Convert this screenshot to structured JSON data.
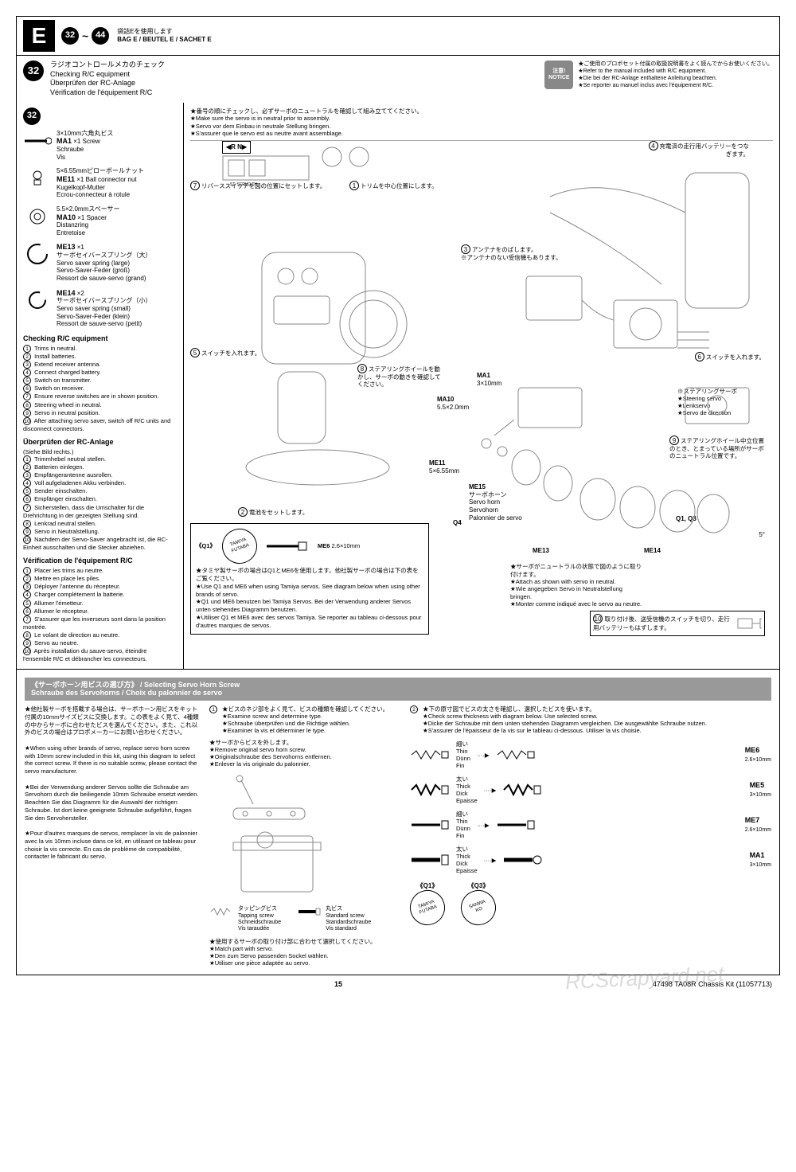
{
  "header": {
    "section_letter": "E",
    "step_from": "32",
    "step_to": "44",
    "bag_jp": "袋詰Eを使用します",
    "bag_multi": "BAG E / BEUTEL E / SACHET E"
  },
  "step32": {
    "num": "32",
    "title_jp": "ラジオコントロールメカのチェック",
    "title_en": "Checking R/C equipment",
    "title_de": "Überprüfen der RC-Anlage",
    "title_fr": "Vérification de l'équipement R/C",
    "notice_label": "注意!\nNOTICE",
    "notice_jp": "★ご使用のプロポセット付属の取扱説明書をよく読んでからお使いください。",
    "notice_en": "★Refer to the manual included with R/C equipment.",
    "notice_de": "★Die bei der RC-Anlage enthaltene Anleitung beachten.",
    "notice_fr": "★Se reporter au manuel inclus avec l'équipement R/C.",
    "neutral_jp": "★番号の順にチェックし、必ずサーボのニュートラルを確認して組み立ててください。",
    "neutral_en": "★Make sure the servo is in neutral prior to assembly.",
    "neutral_de": "★Servo vor dem Einbau in neutrale Stellung bringen.",
    "neutral_fr": "★S'assurer que le servo est au neutre avant assemblage.",
    "rn_label": "◀R  N▶"
  },
  "parts": {
    "ma1": {
      "code": "MA1",
      "qty": "×1",
      "spec": "3×10mm六角丸ビス",
      "en": "Screw",
      "de": "Schraube",
      "fr": "Vis"
    },
    "me11": {
      "code": "ME11",
      "qty": "×1",
      "spec": "5×6.55mmピローボールナット",
      "en": "Ball connector nut",
      "de": "Kugelkopf-Mutter",
      "fr": "Ecrou-connecteur à rotule"
    },
    "ma10": {
      "code": "MA10",
      "qty": "×1",
      "spec": "5.5×2.0mmスペーサー",
      "en": "Spacer",
      "de": "Distanzring",
      "fr": "Entretoise"
    },
    "me13": {
      "code": "ME13",
      "qty": "×1",
      "spec": "サーボセイバースプリング（大）",
      "en": "Servo saver spring (large)",
      "de": "Servo-Saver-Feder (groß)",
      "fr": "Ressort de sauve-servo (grand)"
    },
    "me14": {
      "code": "ME14",
      "qty": "×2",
      "spec": "サーボセイバースプリング（小）",
      "en": "Servo saver spring (small)",
      "de": "Servo-Saver-Feder (klein)",
      "fr": "Ressort de sauve-servo (petit)"
    }
  },
  "checking": {
    "en_title": "Checking R/C equipment",
    "en": [
      "Trims in neutral.",
      "Install batteries.",
      "Extend receiver antenna.",
      "Connect charged battery.",
      "Switch on transmitter.",
      "Switch on receiver.",
      "Ensure reverse switches are in shown position.",
      "Steering wheel in neutral.",
      "Servo in neutral position.",
      "After attaching servo saver, switch off R/C units and disconnect connectors."
    ],
    "de_title": "Überprüfen der RC-Anlage",
    "de_sub": "(Siehe Bild rechts.)",
    "de": [
      "Trimmhebel neutral stellen.",
      "Batterien einlegen.",
      "Empfängerantenne ausrollen.",
      "Voll aufgeladenen Akku verbinden.",
      "Sender einschalten.",
      "Empfänger einschalten.",
      "Sicherstellen, dass die Umschalter für die Drehrichtung in der gezeigten Stellung sind.",
      "Lenkrad neutral stellen.",
      "Servo in Neutralstellung.",
      "Nachdem der Servo-Saver angebracht ist, die RC-Einheit ausschalten und die Stecker abziehen."
    ],
    "fr_title": "Vérification de l'équipement R/C",
    "fr": [
      "Placer les trims au neutre.",
      "Mettre en place les piles.",
      "Déployer l'antenne du récepteur.",
      "Charger complètement la batterie.",
      "Allumer l'émetteur.",
      "Allumer le récepteur.",
      "S'assurer que les inverseurs sont dans la position montrée.",
      "Le volant de direction au neutre.",
      "Servo au neutre.",
      "Après installation du sauve-servo, éteindre l'ensemble R/C et débrancher les connecteurs."
    ]
  },
  "callouts": {
    "c1": "トリムを中心位置にします。",
    "c2": "電池をセットします。",
    "c3a": "アンテナをのばします。",
    "c3b": "※アンテナのない受信機もあります。",
    "c4": "充電済の走行用バッテリーをつなぎます。",
    "c5": "スイッチを入れます。",
    "c6": "スイッチを入れます。",
    "c7": "リバーススイッチを図の位置にセットします。",
    "c8": "ステアリングホイールを動かし、サーボの動きを確認してください。",
    "c9": "ステアリングホイール中立位置のとき、とまっている場所がサーボのニュートラル位置です。",
    "c10": "取り付け後、送受信機のスイッチを切り、走行用バッテリーもはずします。",
    "steering_servo_jp": "※ステアリングサーボ",
    "steering_servo_en": "★Steering servo",
    "steering_servo_de": "★Lenkservo",
    "steering_servo_fr": "★Servo de direction",
    "ma1_lbl": "MA1",
    "ma1_spec": "3×10mm",
    "ma10_lbl": "MA10",
    "ma10_spec": "5.5×2.0mm",
    "me11_lbl": "ME11",
    "me11_spec": "5×6.55mm",
    "me15_lbl": "ME15",
    "me15_text": "サーボホーン\nServo horn\nServohorn\nPalonnier de servo",
    "q4": "Q4",
    "me13_lbl": "ME13",
    "me14_lbl": "ME14",
    "q1q3": "Q1, Q3",
    "angle": "5°",
    "neutral_attach_jp": "★サーボがニュートラルの状態で図のように取り付けます。",
    "neutral_attach_en": "★Attach as shown with servo in neutral.",
    "neutral_attach_de": "★Wie angegeben Servo in Neutralstellung bringen.",
    "neutral_attach_fr": "★Monter comme indiqué avec le servo au neutre."
  },
  "q1_inset": {
    "q1": "《Q1》",
    "tamiya": "TAMIYA",
    "futaba": "FUTABA",
    "me6": "ME6",
    "me6_spec": "2.6×10mm",
    "note_jp": "★タミヤ製サーボの場合はQ1とME6を使用します。他社製サーボの場合は下の表をご覧ください。",
    "note_en": "★Use Q1 and ME6 when using Tamiya servos. See diagram below when using other brands of servo.",
    "note_de": "★Q1 und ME6 benutzen bei Tamiya Servos. Bei der Verwendung anderer Servos unten stehendes Diagramm benutzen.",
    "note_fr": "★Utiliser Q1 et ME6 avec des servos Tamiya. Se reporter au tableau ci-dessous pour d'autres marques de servos."
  },
  "servo_horn": {
    "header": "《サーボホーン用ビスの選び方》 / Selecting Servo Horn Screw\nSchraube des Servohorns / Choix du palonnier de servo",
    "left_jp": "★他社製サーボを搭載する場合は、サーボホーン用ビスをキット付属の10mmサイズビスに交換します。この表をよく見て、4種類の中からサーボに合わせたビスを選んでください。また、これ以外のビスの場合はプロポメーカーにお問い合わせください。",
    "left_en": "★When using other brands of servo, replace servo horn screw with 10mm screw included in this kit, using this diagram to select the correct screw. If there is no suitable screw, please contact the servo manufacturer.",
    "left_de": "★Bei der Verwendung anderer Servos sollte die Schraube am Servohorn durch die beiliegende 10mm Schraube ersetzt werden. Beachten Sie das Diagramm für die Auswahl der richtigen Schraube. Ist dort keine geeignete Schraube aufgeführt, fragen Sie den Servohersteller.",
    "left_fr": "★Pour d'autres marques de servos, remplacer la vis de palonnier avec la vis 10mm incluse dans ce kit, en utilisant ce tableau pour choisir la vis correcte. En cas de problème de compatibilité, contacter le fabricant du servo.",
    "step1_jp": "★ビスのネジ部をよく見て、ビスの種類を確認してください。",
    "step1_en": "★Examine screw and determine type.",
    "step1_de": "★Schraube überprüfen und die Richtige wählen.",
    "step1_fr": "★Examiner la vis et déterminer le type.",
    "remove_jp": "★サーボからビスを外します。",
    "remove_en": "★Remove original servo horn screw.",
    "remove_de": "★Originalschraube des Servohorns entfernen.",
    "remove_fr": "★Enlever la vis originale du palonnier.",
    "step2_jp": "★下の原寸図でビスの太さを確認し、選択したビスを使います。",
    "step2_en": "★Check screw thickness with diagram below. Use selected screw.",
    "step2_de": "★Dicke der Schraube mit dem unten stehenden Diagramm vergleichen. Die ausgewählte Schraube nutzen.",
    "step2_fr": "★S'assurer de l'épaisseur de la vis sur le tableau ci-dessous. Utiliser la vis choisie.",
    "tapping": "タッピングビス\nTapping screw\nSchneidschraube\nVis taraudée",
    "standard": "丸ビス\nStandard screw\nStandardschraube\nVis standard",
    "thin": "細い\nThin\nDünn\nFin",
    "thick": "太い\nThick\nDick\nEpaisse",
    "me6": "ME6",
    "me6_spec": "2.6×10mm",
    "me5": "ME5",
    "me5_spec": "3×10mm",
    "me7": "ME7",
    "me7_spec": "2.6×10mm",
    "ma1": "MA1",
    "ma1_spec": "3×10mm",
    "match_jp": "★使用するサーボの取り付け部に合わせて選択してください。",
    "match_en": "★Match part with servo.",
    "match_de": "★Den zum Servo passenden Sockel wählen.",
    "match_fr": "★Utiliser une pièce adaptée au servo.",
    "q1": "《Q1》",
    "q3": "《Q3》",
    "q1_brands": "TAMIYA\nFUTABA",
    "q3_brands": "SANWA\nKO"
  },
  "footer": {
    "page": "15",
    "product": "47498  TA08R Chassis Kit (11057713)"
  },
  "watermark": "RCScrapyard.net"
}
